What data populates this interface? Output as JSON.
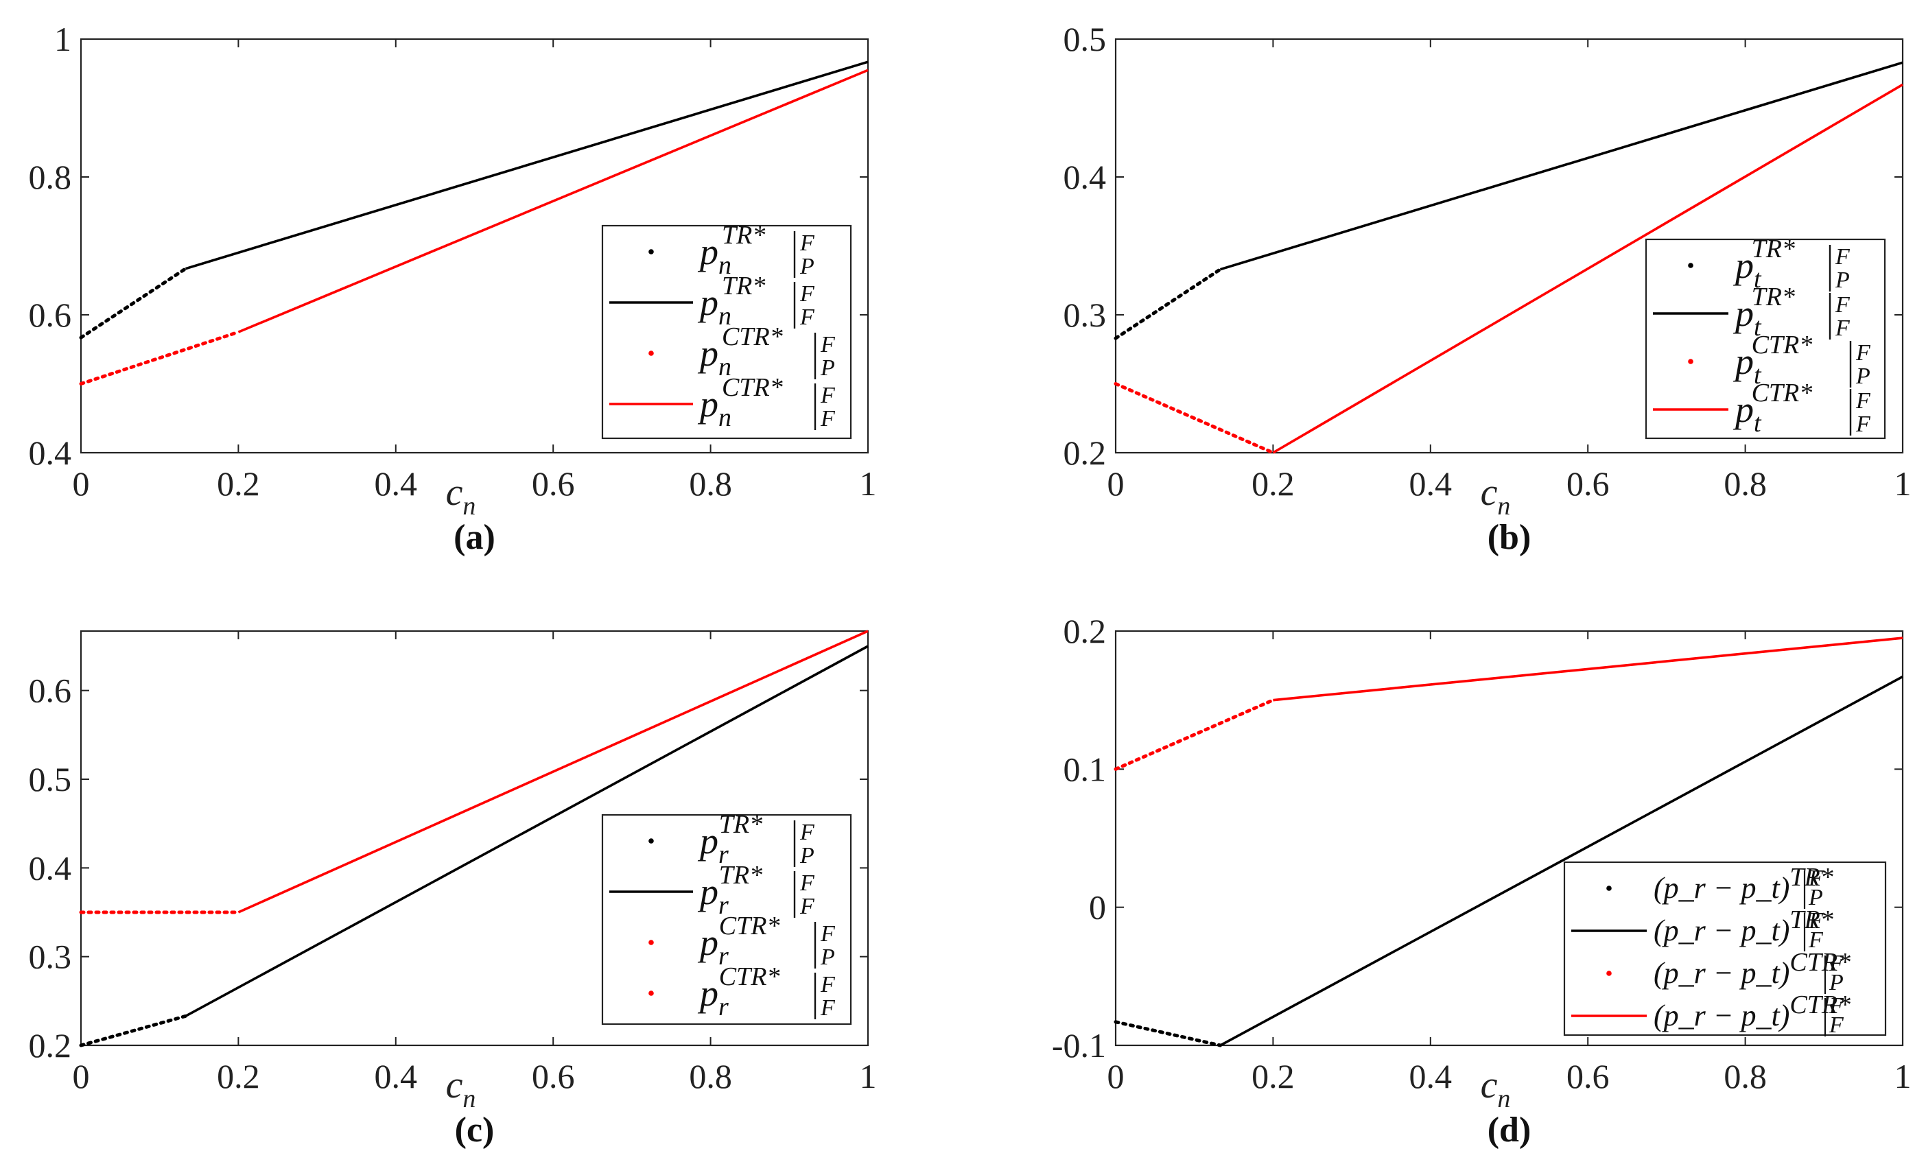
{
  "chart_data": [
    {
      "panel": "(a)",
      "type": "line",
      "xlabel": "c",
      "xlabel_sub": "n",
      "xlim": [
        0,
        1
      ],
      "ylim": [
        0.4,
        1
      ],
      "xticks": [
        "0",
        "0.2",
        "0.4",
        "0.6",
        "0.8",
        "1"
      ],
      "xtick_values": [
        0,
        0.2,
        0.4,
        0.6,
        0.8,
        1
      ],
      "yticks": [
        "0.4",
        "0.6",
        "0.8",
        "1"
      ],
      "ytick_values": [
        0.4,
        0.6,
        0.8,
        1
      ],
      "legend_position": "right",
      "series": [
        {
          "legend": {
            "base": "p",
            "sub": "n",
            "sup": "TR*",
            "bar_top": "F",
            "bar_bot": "P"
          },
          "style": "dotted",
          "color": "#000000",
          "x": [
            0,
            0.133
          ],
          "y": [
            0.567,
            0.667
          ]
        },
        {
          "legend": {
            "base": "p",
            "sub": "n",
            "sup": "TR*",
            "bar_top": "F",
            "bar_bot": "F"
          },
          "style": "solid",
          "color": "#000000",
          "x": [
            0.133,
            1
          ],
          "y": [
            0.667,
            0.967
          ]
        },
        {
          "legend": {
            "base": "p",
            "sub": "n",
            "sup": "CTR*",
            "bar_top": "F",
            "bar_bot": "P"
          },
          "style": "dotted",
          "color": "#ff0000",
          "x": [
            0,
            0.2
          ],
          "y": [
            0.5,
            0.575
          ]
        },
        {
          "legend": {
            "base": "p",
            "sub": "n",
            "sup": "CTR*",
            "bar_top": "F",
            "bar_bot": "F"
          },
          "style": "solid",
          "color": "#ff0000",
          "x": [
            0.2,
            1
          ],
          "y": [
            0.575,
            0.955
          ]
        }
      ]
    },
    {
      "panel": "(b)",
      "type": "line",
      "xlabel": "c",
      "xlabel_sub": "n",
      "xlim": [
        0,
        1
      ],
      "ylim": [
        0.2,
        0.5
      ],
      "xticks": [
        "0",
        "0.2",
        "0.4",
        "0.6",
        "0.8",
        "1"
      ],
      "xtick_values": [
        0,
        0.2,
        0.4,
        0.6,
        0.8,
        1
      ],
      "yticks": [
        "0.2",
        "0.3",
        "0.4",
        "0.5"
      ],
      "ytick_values": [
        0.2,
        0.3,
        0.4,
        0.5
      ],
      "legend_position": "right",
      "series": [
        {
          "legend": {
            "base": "p",
            "sub": "t",
            "sup": "TR*",
            "bar_top": "F",
            "bar_bot": "P"
          },
          "style": "dotted",
          "color": "#000000",
          "x": [
            0,
            0.133
          ],
          "y": [
            0.283,
            0.333
          ]
        },
        {
          "legend": {
            "base": "p",
            "sub": "t",
            "sup": "TR*",
            "bar_top": "F",
            "bar_bot": "F"
          },
          "style": "solid",
          "color": "#000000",
          "x": [
            0.133,
            1
          ],
          "y": [
            0.333,
            0.483
          ]
        },
        {
          "legend": {
            "base": "p",
            "sub": "t",
            "sup": "CTR*",
            "bar_top": "F",
            "bar_bot": "P"
          },
          "style": "dotted",
          "color": "#ff0000",
          "x": [
            0,
            0.2
          ],
          "y": [
            0.25,
            0.2
          ]
        },
        {
          "legend": {
            "base": "p",
            "sub": "t",
            "sup": "CTR*",
            "bar_top": "F",
            "bar_bot": "F"
          },
          "style": "solid",
          "color": "#ff0000",
          "x": [
            0.2,
            1
          ],
          "y": [
            0.2,
            0.467
          ]
        }
      ]
    },
    {
      "panel": "(c)",
      "type": "line",
      "xlabel": "c",
      "xlabel_sub": "n",
      "xlim": [
        0,
        1
      ],
      "ylim": [
        0.2,
        0.667
      ],
      "xticks": [
        "0",
        "0.2",
        "0.4",
        "0.6",
        "0.8",
        "1"
      ],
      "xtick_values": [
        0,
        0.2,
        0.4,
        0.6,
        0.8,
        1
      ],
      "yticks": [
        "0.2",
        "0.3",
        "0.4",
        "0.5",
        "0.6"
      ],
      "ytick_values": [
        0.2,
        0.3,
        0.4,
        0.5,
        0.6
      ],
      "legend_position": "right",
      "series": [
        {
          "legend": {
            "base": "p",
            "sub": "r",
            "sup": "TR*",
            "bar_top": "F",
            "bar_bot": "P"
          },
          "legend_style": "dotted",
          "style": "dotted",
          "color": "#000000",
          "x": [
            0,
            0.133
          ],
          "y": [
            0.2,
            0.233
          ]
        },
        {
          "legend": {
            "base": "p",
            "sub": "r",
            "sup": "TR*",
            "bar_top": "F",
            "bar_bot": "F"
          },
          "legend_style": "solid",
          "style": "solid",
          "color": "#000000",
          "x": [
            0.133,
            1
          ],
          "y": [
            0.233,
            0.65
          ]
        },
        {
          "legend": {
            "base": "p",
            "sub": "r",
            "sup": "CTR*",
            "bar_top": "F",
            "bar_bot": "P"
          },
          "legend_style": "dotted",
          "style": "dotted",
          "color": "#ff0000",
          "x": [
            0,
            0.2
          ],
          "y": [
            0.35,
            0.35
          ]
        },
        {
          "legend": {
            "base": "p",
            "sub": "r",
            "sup": "CTR*",
            "bar_top": "F",
            "bar_bot": "F"
          },
          "legend_style": "dotted",
          "style": "solid",
          "color": "#ff0000",
          "x": [
            0.2,
            1
          ],
          "y": [
            0.35,
            0.667
          ]
        }
      ]
    },
    {
      "panel": "(d)",
      "type": "line",
      "xlabel": "c",
      "xlabel_sub": "n",
      "xlim": [
        0,
        1
      ],
      "ylim": [
        -0.1,
        0.2
      ],
      "xticks": [
        "0",
        "0.2",
        "0.4",
        "0.6",
        "0.8",
        "1"
      ],
      "xtick_values": [
        0,
        0.2,
        0.4,
        0.6,
        0.8,
        1
      ],
      "yticks": [
        "-0.1",
        "0",
        "0.1",
        "0.2"
      ],
      "ytick_values": [
        -0.1,
        0,
        0.1,
        0.2
      ],
      "legend_position": "bottom-right",
      "series": [
        {
          "legend": {
            "base": "(p_r − p_t)",
            "sup": "TR*",
            "bar_top": "F",
            "bar_bot": "P"
          },
          "style": "dotted",
          "color": "#000000",
          "x": [
            0,
            0.133
          ],
          "y": [
            -0.083,
            -0.1
          ]
        },
        {
          "legend": {
            "base": "(p_r − p_t)",
            "sup": "TR*",
            "bar_top": "F",
            "bar_bot": "F"
          },
          "style": "solid",
          "color": "#000000",
          "x": [
            0.133,
            1
          ],
          "y": [
            -0.1,
            0.167
          ]
        },
        {
          "legend": {
            "base": "(p_r − p_t)",
            "sup": "CTR*",
            "bar_top": "F",
            "bar_bot": "P"
          },
          "style": "dotted",
          "color": "#ff0000",
          "x": [
            0,
            0.2
          ],
          "y": [
            0.1,
            0.15
          ]
        },
        {
          "legend": {
            "base": "(p_r − p_t)",
            "sup": "CTR*",
            "bar_top": "F",
            "bar_bot": "F"
          },
          "style": "solid",
          "color": "#ff0000",
          "x": [
            0.2,
            1
          ],
          "y": [
            0.15,
            0.195
          ]
        }
      ]
    }
  ]
}
